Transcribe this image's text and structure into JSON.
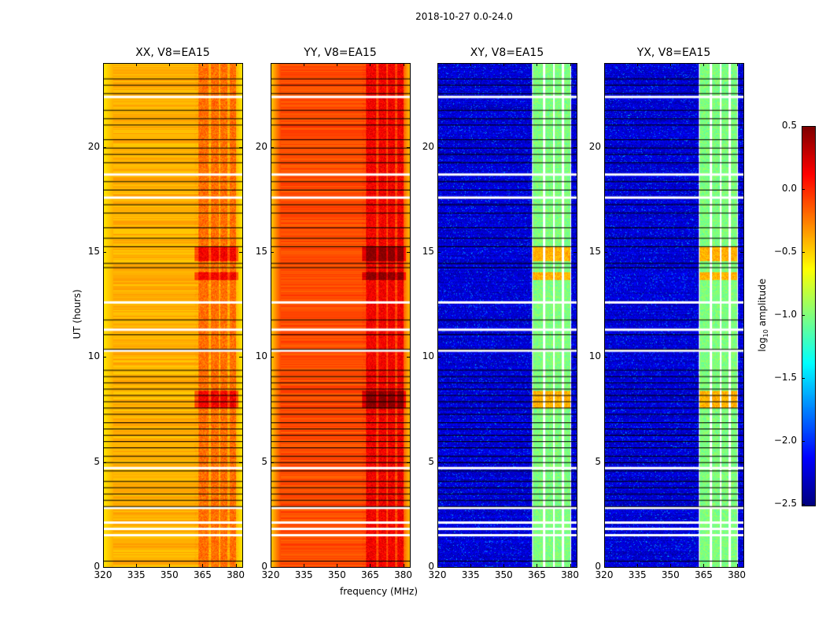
{
  "chart_data": {
    "type": "heatmap",
    "title": "2018-10-27 0.0-24.0",
    "xlabel": "frequency (MHz)",
    "ylabel": "UT (hours)",
    "xlim": [
      320,
      383
    ],
    "ylim": [
      0,
      24
    ],
    "xticks": [
      "320",
      "335",
      "350",
      "365",
      "380"
    ],
    "xtick_values": [
      320,
      335,
      350,
      365,
      380
    ],
    "yticks": [
      "0",
      "5",
      "10",
      "15",
      "20"
    ],
    "ytick_values": [
      0,
      5,
      10,
      15,
      20
    ],
    "colorbar": {
      "label": "log10 amplitude",
      "label_main": "log",
      "label_sub": "10",
      "label_rest": " amplitude",
      "range": [
        -2.5,
        0.5
      ],
      "ticks": [
        "0.5",
        "0.0",
        "−0.5",
        "−1.0",
        "−1.5",
        "−2.0",
        "−2.5"
      ],
      "tick_values": [
        0.5,
        0,
        -0.5,
        -1,
        -1.5,
        -2,
        -2.5
      ],
      "colormap": "jet"
    },
    "panels": [
      {
        "title": "XX, V8=EA15",
        "background_level": -0.4,
        "band_level": -0.2,
        "edge_level": -0.55
      },
      {
        "title": "YY, V8=EA15",
        "background_level": -0.1,
        "band_level": 0.15,
        "edge_level": -0.45
      },
      {
        "title": "XY, V8=EA15",
        "background_level": -2.25,
        "band_level": -1.0,
        "edge_level": -2.25
      },
      {
        "title": "YX, V8=EA15",
        "background_level": -2.25,
        "band_level": -1.0,
        "edge_level": -2.25
      }
    ],
    "rfi_bands_mhz": [
      [
        363,
        367.5
      ],
      [
        368.5,
        372
      ],
      [
        373,
        376
      ],
      [
        377,
        380
      ]
    ],
    "flagged_rows_hours": [
      1.5,
      1.8,
      2.1,
      2.8,
      4.7,
      10.3,
      11.3,
      12.6,
      17.6,
      18.7,
      22.4
    ],
    "black_rows_hours": [
      0.3,
      2.9,
      3.2,
      3.5,
      3.8,
      4.1,
      4.6,
      5.0,
      5.3,
      5.7,
      6.0,
      6.3,
      6.6,
      6.9,
      7.3,
      7.6,
      7.9,
      8.2,
      8.5,
      8.8,
      9.1,
      9.4,
      10.4,
      11.1,
      11.8,
      14.3,
      14.5,
      15.3,
      15.7,
      16.2,
      16.9,
      17.3,
      18.0,
      18.4,
      19.3,
      19.7,
      20.0,
      20.4,
      21.1,
      21.4,
      21.8,
      22.6,
      23.0,
      23.3
    ],
    "bright_rows_hours": [
      [
        7.6,
        8.4
      ],
      [
        13.7,
        14.1
      ],
      [
        14.6,
        15.3
      ]
    ]
  }
}
